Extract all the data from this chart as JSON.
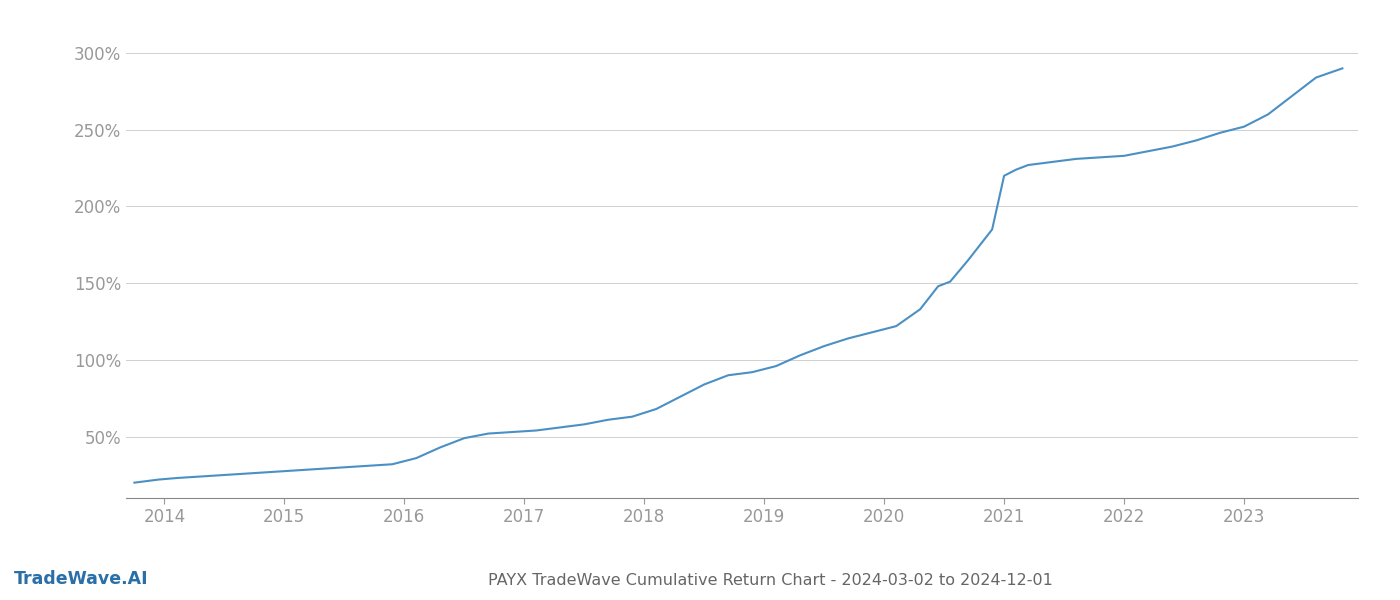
{
  "title": "PAYX TradeWave Cumulative Return Chart - 2024-03-02 to 2024-12-01",
  "watermark": "TradeWave.AI",
  "line_color": "#4a90c4",
  "background_color": "#ffffff",
  "grid_color": "#d0d0d0",
  "tick_color": "#999999",
  "title_color": "#666666",
  "watermark_color": "#2a6fa8",
  "x_years": [
    2014,
    2015,
    2016,
    2017,
    2018,
    2019,
    2020,
    2021,
    2022,
    2023
  ],
  "x_data": [
    2013.75,
    2013.85,
    2013.95,
    2014.1,
    2014.3,
    2014.5,
    2014.7,
    2014.9,
    2015.1,
    2015.3,
    2015.5,
    2015.7,
    2015.9,
    2016.1,
    2016.3,
    2016.5,
    2016.7,
    2016.9,
    2017.1,
    2017.3,
    2017.5,
    2017.7,
    2017.9,
    2018.1,
    2018.3,
    2018.5,
    2018.7,
    2018.9,
    2019.1,
    2019.3,
    2019.5,
    2019.7,
    2019.9,
    2020.1,
    2020.3,
    2020.45,
    2020.55,
    2020.7,
    2020.9,
    2021.0,
    2021.1,
    2021.2,
    2021.4,
    2021.6,
    2021.8,
    2022.0,
    2022.2,
    2022.4,
    2022.6,
    2022.8,
    2023.0,
    2023.2,
    2023.4,
    2023.6,
    2023.82
  ],
  "y_data": [
    20,
    21,
    22,
    23,
    24,
    25,
    26,
    27,
    28,
    29,
    30,
    31,
    32,
    36,
    43,
    49,
    52,
    53,
    54,
    56,
    58,
    61,
    63,
    68,
    76,
    84,
    90,
    92,
    96,
    103,
    109,
    114,
    118,
    122,
    133,
    148,
    151,
    165,
    185,
    220,
    224,
    227,
    229,
    231,
    232,
    233,
    236,
    239,
    243,
    248,
    252,
    260,
    272,
    284,
    290
  ],
  "yticks": [
    50,
    100,
    150,
    200,
    250,
    300
  ],
  "ylim": [
    10,
    315
  ],
  "xlim": [
    2013.68,
    2023.95
  ],
  "line_width": 1.5,
  "title_fontsize": 11.5,
  "tick_fontsize": 12,
  "watermark_fontsize": 12.5
}
